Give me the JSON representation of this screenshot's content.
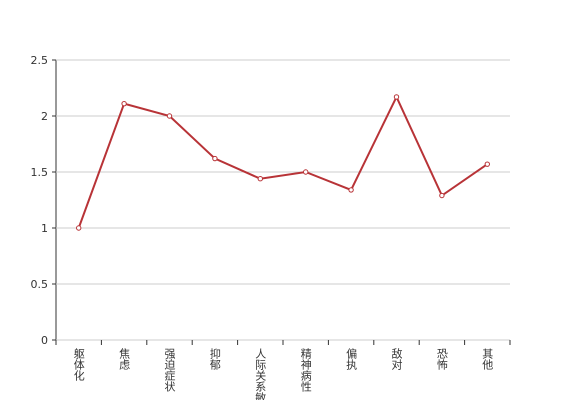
{
  "chart_data": {
    "type": "line",
    "categories": [
      "躯体化",
      "焦虑",
      "强迫症状",
      "抑郁",
      "人际关系敏感",
      "精神病性",
      "偏执",
      "敌对",
      "恐怖",
      "其他"
    ],
    "series": [
      {
        "color": "#b83337",
        "values": [
          1.0,
          2.11,
          2.0,
          1.62,
          1.44,
          1.5,
          1.34,
          2.17,
          1.29,
          1.57
        ]
      }
    ],
    "ylim": [
      0,
      2.5
    ],
    "yticks": [
      0,
      0.5,
      1,
      1.5,
      2,
      2.5
    ],
    "grid": true
  }
}
